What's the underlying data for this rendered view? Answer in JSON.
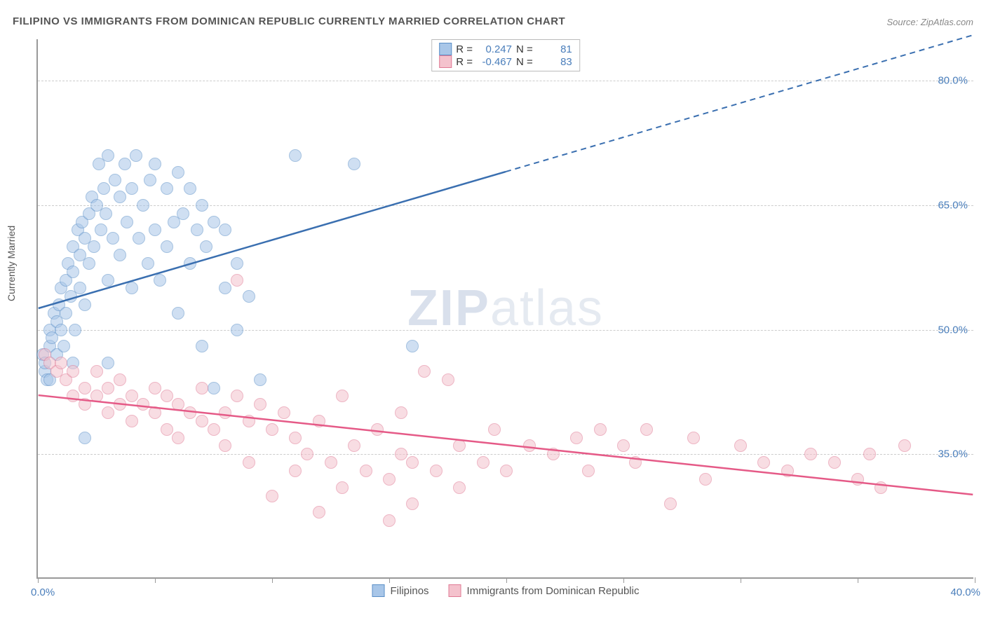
{
  "title": "FILIPINO VS IMMIGRANTS FROM DOMINICAN REPUBLIC CURRENTLY MARRIED CORRELATION CHART",
  "source": "Source: ZipAtlas.com",
  "ylabel": "Currently Married",
  "watermark_bold": "ZIP",
  "watermark_light": "atlas",
  "chart": {
    "type": "scatter",
    "xlim": [
      0,
      40
    ],
    "ylim": [
      20,
      85
    ],
    "xtick_positions": [
      0,
      5,
      10,
      15,
      20,
      25,
      30,
      35,
      40
    ],
    "xtick_labels": {
      "0": "0.0%",
      "40": "40.0%"
    },
    "ytick_positions": [
      35,
      50,
      65,
      80
    ],
    "ytick_labels": [
      "35.0%",
      "50.0%",
      "65.0%",
      "80.0%"
    ],
    "grid_color": "#cccccc",
    "background": "#ffffff",
    "axis_color": "#999999",
    "label_color": "#4a7ebb",
    "point_radius": 9,
    "point_opacity": 0.55,
    "point_border_width": 1.5
  },
  "series": [
    {
      "name": "Filipinos",
      "fill": "#a8c6e8",
      "stroke": "#5b8fc7",
      "R": "0.247",
      "N": "81",
      "trend": {
        "x1": 0,
        "y1": 52.5,
        "x2": 20,
        "y2": 69,
        "x3": 40,
        "y3": 85.5,
        "color": "#3a6fb0",
        "dash_from_x": 20
      },
      "points": [
        [
          0.2,
          47
        ],
        [
          0.3,
          45
        ],
        [
          0.4,
          44
        ],
        [
          0.5,
          48
        ],
        [
          0.5,
          50
        ],
        [
          0.6,
          49
        ],
        [
          0.7,
          52
        ],
        [
          0.8,
          51
        ],
        [
          0.8,
          47
        ],
        [
          0.9,
          53
        ],
        [
          1.0,
          50
        ],
        [
          1.0,
          55
        ],
        [
          1.1,
          48
        ],
        [
          1.2,
          56
        ],
        [
          1.2,
          52
        ],
        [
          1.3,
          58
        ],
        [
          1.4,
          54
        ],
        [
          1.5,
          60
        ],
        [
          1.5,
          57
        ],
        [
          1.6,
          50
        ],
        [
          1.7,
          62
        ],
        [
          1.8,
          59
        ],
        [
          1.8,
          55
        ],
        [
          1.9,
          63
        ],
        [
          2.0,
          61
        ],
        [
          2.0,
          53
        ],
        [
          2.2,
          64
        ],
        [
          2.2,
          58
        ],
        [
          2.3,
          66
        ],
        [
          2.4,
          60
        ],
        [
          2.5,
          65
        ],
        [
          2.6,
          70
        ],
        [
          2.7,
          62
        ],
        [
          2.8,
          67
        ],
        [
          2.9,
          64
        ],
        [
          3.0,
          71
        ],
        [
          3.0,
          56
        ],
        [
          3.2,
          61
        ],
        [
          3.3,
          68
        ],
        [
          3.5,
          66
        ],
        [
          3.5,
          59
        ],
        [
          3.7,
          70
        ],
        [
          3.8,
          63
        ],
        [
          4.0,
          55
        ],
        [
          4.0,
          67
        ],
        [
          4.2,
          71
        ],
        [
          4.3,
          61
        ],
        [
          4.5,
          65
        ],
        [
          4.7,
          58
        ],
        [
          4.8,
          68
        ],
        [
          5.0,
          70
        ],
        [
          5.0,
          62
        ],
        [
          5.2,
          56
        ],
        [
          5.5,
          67
        ],
        [
          5.5,
          60
        ],
        [
          5.8,
          63
        ],
        [
          6.0,
          69
        ],
        [
          6.0,
          52
        ],
        [
          6.2,
          64
        ],
        [
          6.5,
          67
        ],
        [
          6.5,
          58
        ],
        [
          6.8,
          62
        ],
        [
          7.0,
          65
        ],
        [
          7.0,
          48
        ],
        [
          7.2,
          60
        ],
        [
          7.5,
          43
        ],
        [
          7.5,
          63
        ],
        [
          8.0,
          62
        ],
        [
          8.0,
          55
        ],
        [
          8.5,
          58
        ],
        [
          8.5,
          50
        ],
        [
          9.0,
          54
        ],
        [
          9.5,
          44
        ],
        [
          11.0,
          71
        ],
        [
          13.5,
          70
        ],
        [
          16.0,
          48
        ],
        [
          2.0,
          37
        ],
        [
          1.5,
          46
        ],
        [
          3.0,
          46
        ],
        [
          0.5,
          44
        ],
        [
          0.3,
          46
        ]
      ]
    },
    {
      "name": "Immigrants from Dominican Republic",
      "fill": "#f4c2cd",
      "stroke": "#e07a95",
      "R": "-0.467",
      "N": "83",
      "trend": {
        "x1": 0,
        "y1": 42,
        "x2": 40,
        "y2": 30,
        "color": "#e55a87"
      },
      "points": [
        [
          0.3,
          47
        ],
        [
          0.5,
          46
        ],
        [
          0.8,
          45
        ],
        [
          1.0,
          46
        ],
        [
          1.2,
          44
        ],
        [
          1.5,
          42
        ],
        [
          1.5,
          45
        ],
        [
          2.0,
          43
        ],
        [
          2.0,
          41
        ],
        [
          2.5,
          42
        ],
        [
          2.5,
          45
        ],
        [
          3.0,
          40
        ],
        [
          3.0,
          43
        ],
        [
          3.5,
          41
        ],
        [
          3.5,
          44
        ],
        [
          4.0,
          42
        ],
        [
          4.0,
          39
        ],
        [
          4.5,
          41
        ],
        [
          5.0,
          40
        ],
        [
          5.0,
          43
        ],
        [
          5.5,
          38
        ],
        [
          5.5,
          42
        ],
        [
          6.0,
          41
        ],
        [
          6.0,
          37
        ],
        [
          6.5,
          40
        ],
        [
          7.0,
          39
        ],
        [
          7.0,
          43
        ],
        [
          7.5,
          38
        ],
        [
          8.0,
          40
        ],
        [
          8.0,
          36
        ],
        [
          8.5,
          42
        ],
        [
          9.0,
          39
        ],
        [
          9.0,
          34
        ],
        [
          9.5,
          41
        ],
        [
          10.0,
          38
        ],
        [
          10.0,
          30
        ],
        [
          10.5,
          40
        ],
        [
          11.0,
          33
        ],
        [
          11.0,
          37
        ],
        [
          11.5,
          35
        ],
        [
          12.0,
          39
        ],
        [
          12.0,
          28
        ],
        [
          12.5,
          34
        ],
        [
          13.0,
          42
        ],
        [
          13.0,
          31
        ],
        [
          13.5,
          36
        ],
        [
          14.0,
          33
        ],
        [
          14.5,
          38
        ],
        [
          15.0,
          32
        ],
        [
          15.0,
          27
        ],
        [
          15.5,
          35
        ],
        [
          16.0,
          34
        ],
        [
          16.0,
          29
        ],
        [
          16.5,
          45
        ],
        [
          17.0,
          33
        ],
        [
          17.5,
          44
        ],
        [
          18.0,
          36
        ],
        [
          18.0,
          31
        ],
        [
          19.0,
          34
        ],
        [
          19.5,
          38
        ],
        [
          20.0,
          33
        ],
        [
          21.0,
          36
        ],
        [
          22.0,
          35
        ],
        [
          23.0,
          37
        ],
        [
          23.5,
          33
        ],
        [
          24.0,
          38
        ],
        [
          25.0,
          36
        ],
        [
          25.5,
          34
        ],
        [
          26.0,
          38
        ],
        [
          27.0,
          29
        ],
        [
          28.0,
          37
        ],
        [
          28.5,
          32
        ],
        [
          30.0,
          36
        ],
        [
          31.0,
          34
        ],
        [
          32.0,
          33
        ],
        [
          33.0,
          35
        ],
        [
          34.0,
          34
        ],
        [
          35.0,
          32
        ],
        [
          35.5,
          35
        ],
        [
          36.0,
          31
        ],
        [
          37.0,
          36
        ],
        [
          15.5,
          40
        ],
        [
          8.5,
          56
        ]
      ]
    }
  ],
  "stats_legend": {
    "r_label": "R =",
    "n_label": "N ="
  },
  "bottom_legend": {
    "items": [
      "Filipinos",
      "Immigrants from Dominican Republic"
    ]
  }
}
